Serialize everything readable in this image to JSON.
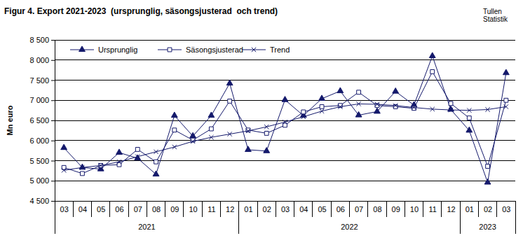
{
  "chart_data": {
    "type": "line",
    "title": "Figur 4. Export 2021-2023  (ursprunglig, säsongsjusterad  och trend)",
    "annotations": [
      "Tullen",
      "Statistik"
    ],
    "y_label": "Mn euro",
    "categories": [
      "03",
      "04",
      "05",
      "06",
      "07",
      "08",
      "09",
      "10",
      "11",
      "12",
      "01",
      "02",
      "03",
      "04",
      "05",
      "06",
      "07",
      "08",
      "09",
      "10",
      "11",
      "12",
      "01",
      "02",
      "03"
    ],
    "year_groups": [
      {
        "label": "2021",
        "count": 10
      },
      {
        "label": "2022",
        "count": 12
      },
      {
        "label": "2023",
        "count": 3
      }
    ],
    "series": [
      {
        "name": "Ursprunglig",
        "color": "#14196b",
        "marker": "triangle",
        "values": [
          5820,
          5330,
          5290,
          5700,
          5560,
          5160,
          6620,
          6110,
          6620,
          7420,
          5770,
          5740,
          7010,
          6620,
          7040,
          7230,
          6630,
          6720,
          7220,
          6880,
          8100,
          6770,
          6250,
          4960,
          7680
        ]
      },
      {
        "name": "Säsongsjusterad",
        "color": "#14196b",
        "marker": "square-open",
        "values": [
          5330,
          5180,
          5380,
          5400,
          5780,
          5470,
          6260,
          6010,
          6290,
          6980,
          6260,
          6180,
          6380,
          6710,
          6840,
          6870,
          7200,
          6870,
          6840,
          6800,
          7710,
          6920,
          6560,
          5360,
          7000
        ]
      },
      {
        "name": "Trend",
        "color": "#14196b",
        "marker": "x",
        "values": [
          5260,
          5330,
          5380,
          5470,
          5600,
          5720,
          5840,
          5980,
          6080,
          6160,
          6240,
          6340,
          6460,
          6590,
          6730,
          6840,
          6910,
          6900,
          6870,
          6820,
          6780,
          6760,
          6750,
          6770,
          6840
        ]
      }
    ],
    "ylim": [
      4500,
      8500
    ],
    "yticks": [
      {
        "value": 4500,
        "label": "4 500"
      },
      {
        "value": 5000,
        "label": "5 000"
      },
      {
        "value": 5500,
        "label": "5 500"
      },
      {
        "value": 6000,
        "label": "6 000"
      },
      {
        "value": 6500,
        "label": "6 500"
      },
      {
        "value": 7000,
        "label": "7 000"
      },
      {
        "value": 7500,
        "label": "7 500"
      },
      {
        "value": 8000,
        "label": "8 000"
      },
      {
        "value": 8500,
        "label": "8 500"
      }
    ],
    "grid": true,
    "legend": "top-left"
  }
}
